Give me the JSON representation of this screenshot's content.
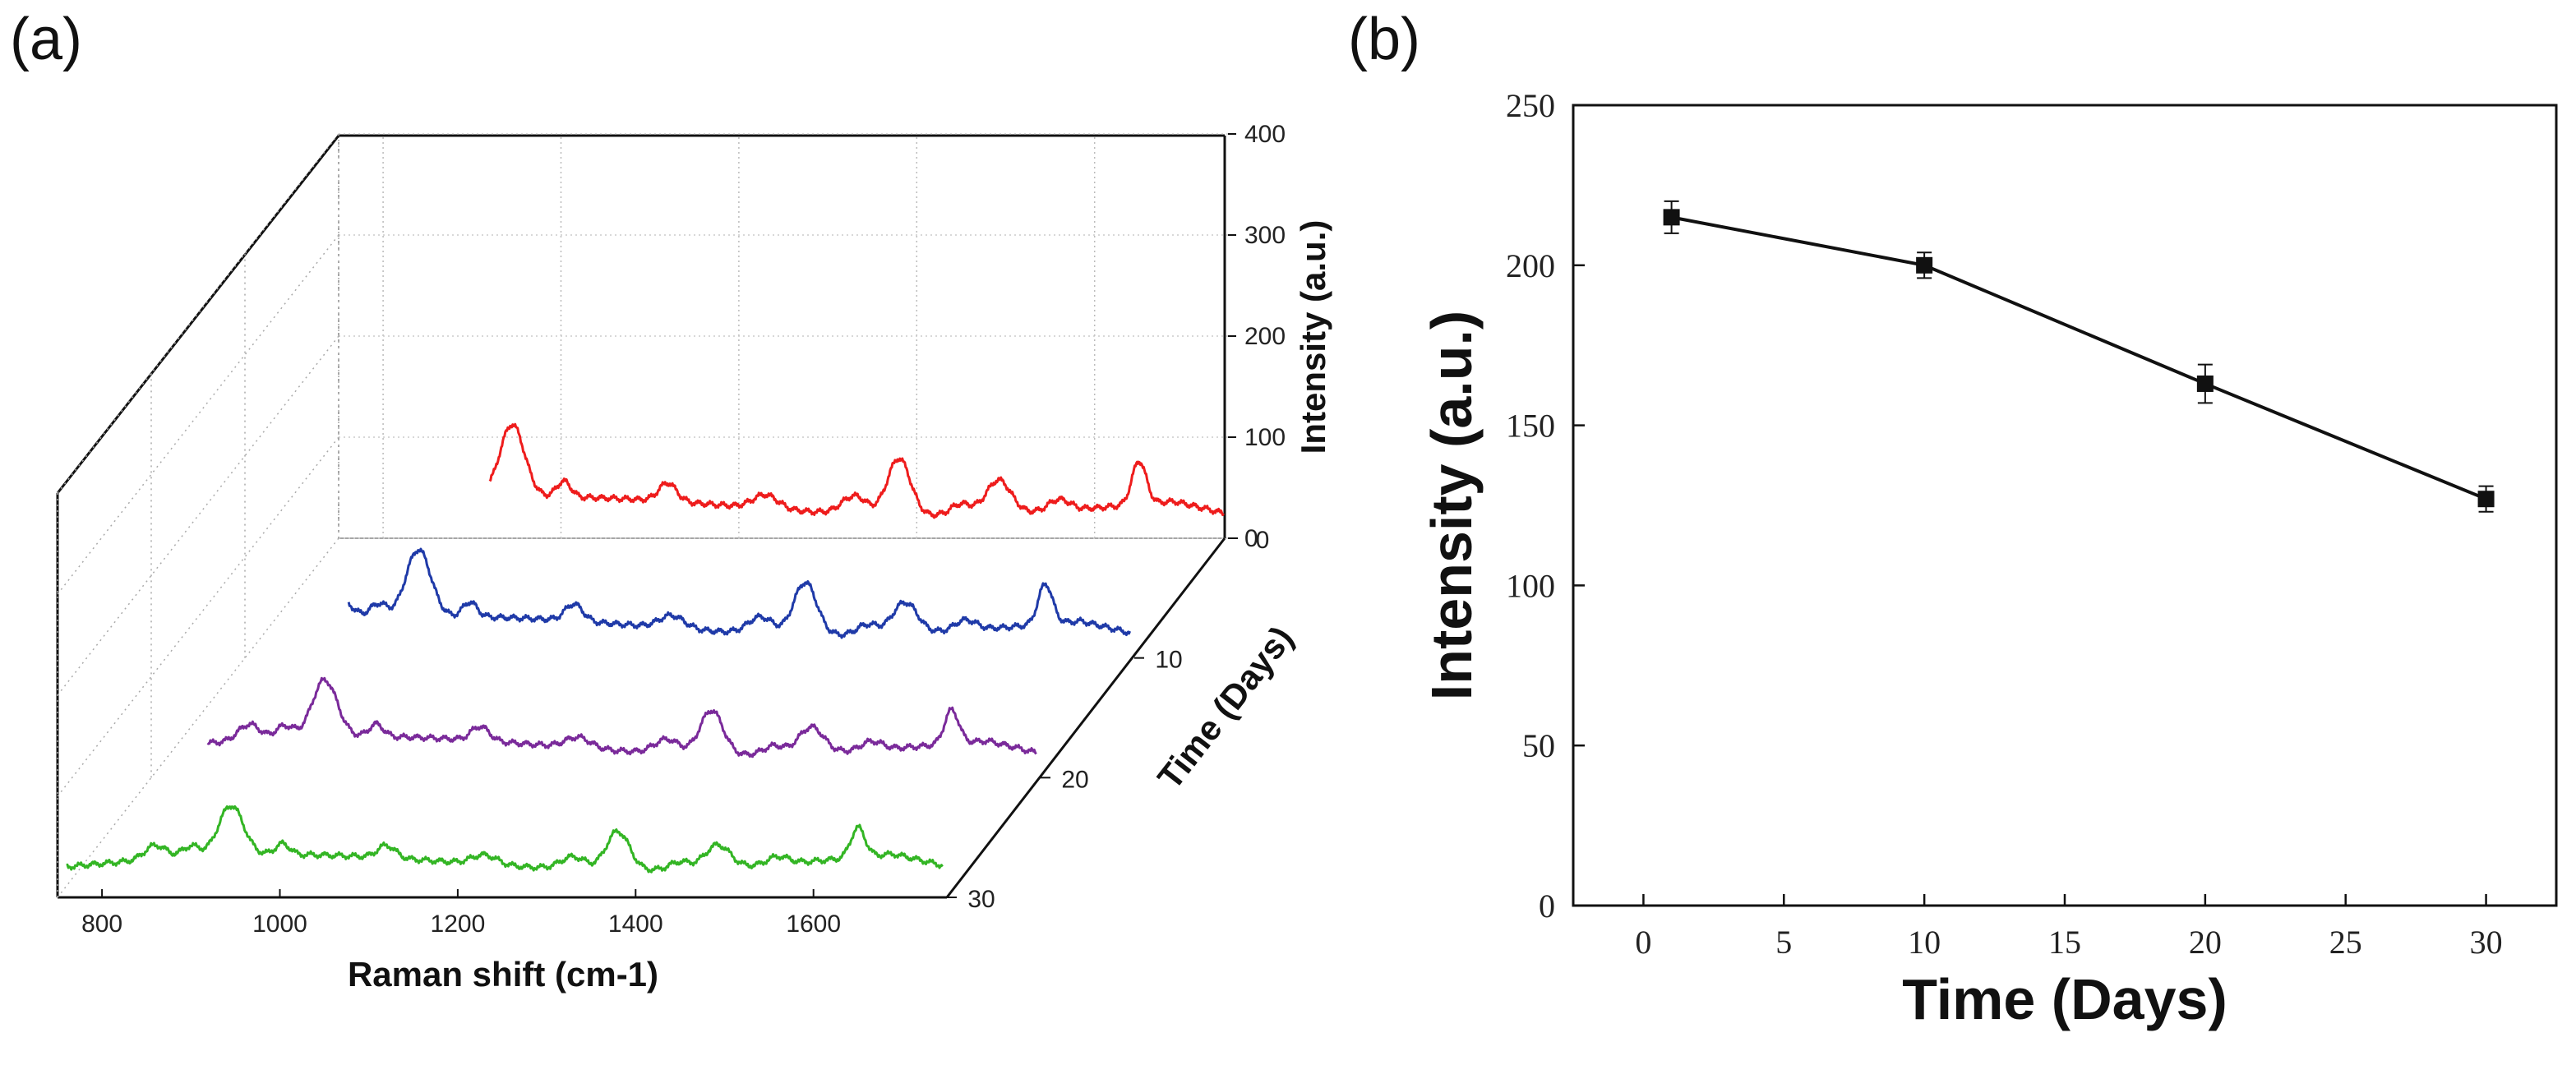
{
  "chart_data": [
    {
      "panel": "(a)",
      "type": "line",
      "title": "",
      "xlabel": "Raman shift (cm-1)",
      "ylabel": "Intensity (a.u.)",
      "zlabel": "Time (Days)",
      "xticks": [
        "800",
        "1000",
        "1200",
        "1400",
        "1600"
      ],
      "yticks": [
        "0",
        "100",
        "200",
        "300",
        "400"
      ],
      "zticks": [
        "0",
        "10",
        "20",
        "30"
      ],
      "xlim": [
        750,
        1750
      ],
      "ylim": [
        0,
        400
      ],
      "peaks": [
        {
          "shift": 860,
          "h": 0.45,
          "w": 12
        },
        {
          "shift": 900,
          "h": 0.35,
          "w": 10
        },
        {
          "shift": 945,
          "h": 1.6,
          "w": 14
        },
        {
          "shift": 1003,
          "h": 0.35,
          "w": 8
        },
        {
          "shift": 1120,
          "h": 0.4,
          "w": 10
        },
        {
          "shift": 1230,
          "h": 0.3,
          "w": 14
        },
        {
          "shift": 1330,
          "h": 0.4,
          "w": 14
        },
        {
          "shift": 1380,
          "h": 1.25,
          "w": 13
        },
        {
          "shift": 1450,
          "h": 0.25,
          "w": 12
        },
        {
          "shift": 1492,
          "h": 0.75,
          "w": 14
        },
        {
          "shift": 1560,
          "h": 0.25,
          "w": 12
        },
        {
          "shift": 1650,
          "h": 0.95,
          "w": 8
        }
      ],
      "series": [
        {
          "name": "0 days",
          "day": 0,
          "color": "#ee1c1c",
          "scale": 82
        },
        {
          "name": "10 days",
          "day": 10,
          "color": "#1f3aa8",
          "scale": 76
        },
        {
          "name": "20 days",
          "day": 20,
          "color": "#7a2a9a",
          "scale": 64
        },
        {
          "name": "30 days",
          "day": 30,
          "color": "#33b524",
          "scale": 56
        }
      ]
    },
    {
      "panel": "(b)",
      "type": "line",
      "title": "",
      "xlabel": "Time (Days)",
      "ylabel": "Intensity (a.u.)",
      "xlim": [
        -2.5,
        32.5
      ],
      "ylim": [
        0,
        250
      ],
      "xticks": [
        "0",
        "5",
        "10",
        "15",
        "20",
        "25",
        "30"
      ],
      "yticks": [
        "0",
        "50",
        "100",
        "150",
        "200",
        "250"
      ],
      "series": [
        {
          "name": "Intensity",
          "x": [
            1,
            10,
            20,
            30
          ],
          "y": [
            215,
            200,
            163,
            127
          ],
          "err": [
            5,
            4,
            6,
            4
          ],
          "color": "#111111",
          "marker": "square"
        }
      ]
    }
  ]
}
